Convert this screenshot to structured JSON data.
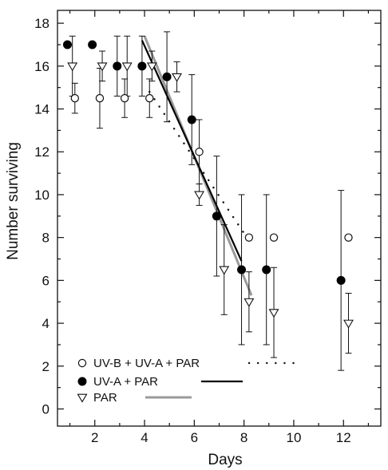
{
  "chart_data": {
    "type": "scatter",
    "title": "",
    "xlabel": "Days",
    "ylabel": "Number surviving",
    "xlim": [
      0.5,
      13.5
    ],
    "ylim": [
      -0.8,
      18.6
    ],
    "xticks": [
      2,
      4,
      6,
      8,
      10,
      12
    ],
    "yticks": [
      0,
      2,
      4,
      6,
      8,
      10,
      12,
      14,
      16,
      18
    ],
    "grid": false,
    "legend_position": "bottom-left",
    "series": [
      {
        "name": "UV-B + UV-A + PAR",
        "marker": "open-circle",
        "line_style": "dotted",
        "color": "#111111",
        "points": [
          {
            "x": 1.2,
            "y": 14.5,
            "err": 0.7
          },
          {
            "x": 2.2,
            "y": 14.5,
            "err": 1.4
          },
          {
            "x": 3.2,
            "y": 14.5,
            "err": 0.9
          },
          {
            "x": 4.2,
            "y": 14.5,
            "err": 0.9
          },
          {
            "x": 6.2,
            "y": 12.0,
            "err": 1.5
          },
          {
            "x": 8.2,
            "y": 8.0,
            "err": 0
          },
          {
            "x": 9.2,
            "y": 8.0,
            "err": 0
          },
          {
            "x": 12.2,
            "y": 8.0,
            "err": 0
          }
        ],
        "fit": {
          "x1": 4.2,
          "y1": 14.8,
          "x2": 8.0,
          "y2": 8.2
        }
      },
      {
        "name": "UV-A + PAR",
        "marker": "filled-circle",
        "line_style": "solid",
        "color": "#000000",
        "points": [
          {
            "x": 0.9,
            "y": 17.0,
            "err": 0
          },
          {
            "x": 1.9,
            "y": 17.0,
            "err": 0
          },
          {
            "x": 2.9,
            "y": 16.0,
            "err": 1.4
          },
          {
            "x": 3.9,
            "y": 16.0,
            "err": 1.4
          },
          {
            "x": 4.9,
            "y": 15.5,
            "err": 2.1
          },
          {
            "x": 5.9,
            "y": 13.5,
            "err": 2.1
          },
          {
            "x": 6.9,
            "y": 9.0,
            "err": 2.8
          },
          {
            "x": 7.9,
            "y": 6.5,
            "err": 3.5
          },
          {
            "x": 8.9,
            "y": 6.5,
            "err": 3.5
          },
          {
            "x": 11.9,
            "y": 6.0,
            "err": 4.2
          }
        ],
        "fit": {
          "x1": 3.9,
          "y1": 17.2,
          "x2": 7.9,
          "y2": 6.9
        }
      },
      {
        "name": "PAR",
        "marker": "open-triangle-down",
        "line_style": "solid-gray",
        "color": "#9a9a9a",
        "points": [
          {
            "x": 1.1,
            "y": 16.0,
            "err": 1.4
          },
          {
            "x": 2.3,
            "y": 16.0,
            "err": 0.7
          },
          {
            "x": 3.3,
            "y": 16.0,
            "err": 1.4
          },
          {
            "x": 4.3,
            "y": 16.0,
            "err": 0.7
          },
          {
            "x": 5.3,
            "y": 15.5,
            "err": 0.7
          },
          {
            "x": 6.2,
            "y": 10.0,
            "err": 0.5
          },
          {
            "x": 7.2,
            "y": 6.5,
            "err": 2.1
          },
          {
            "x": 8.2,
            "y": 5.0,
            "err": 1.4
          },
          {
            "x": 9.2,
            "y": 4.5,
            "err": 2.1
          },
          {
            "x": 12.2,
            "y": 4.0,
            "err": 1.4
          }
        ],
        "fit": {
          "x1": 4.0,
          "y1": 17.4,
          "x2": 8.3,
          "y2": 5.3
        }
      }
    ]
  }
}
